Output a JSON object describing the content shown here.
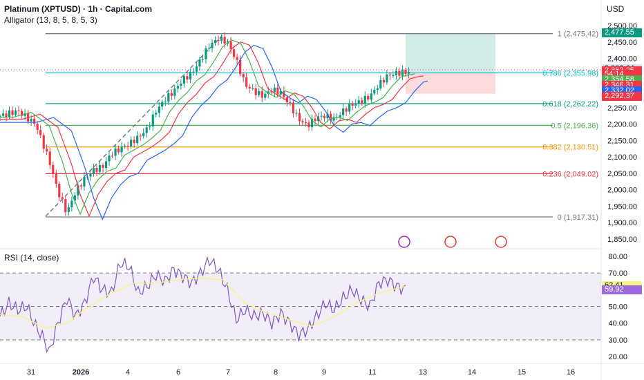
{
  "header": {
    "symbol": "Platinum (XPTUSD) · 1h · Capital.com",
    "indicator": "Alligator (13, 8, 5, 8, 5, 3)",
    "currency": "USD",
    "rsi_label": "RSI (14, close)"
  },
  "price_tags": [
    {
      "text": "2,477.55",
      "color": "#089981",
      "y": 2477.55
    },
    {
      "text": "2,368.64",
      "color": "#e0e3eb",
      "textColor": "#131722",
      "y": 2368.64
    },
    {
      "text": "2,362.25",
      "color": "#f23645",
      "y": 2362.25
    },
    {
      "text": "54:14",
      "color": "#f23645",
      "y": 2351.5
    },
    {
      "text": "2,354.58",
      "color": "#4caf50",
      "y": 2335.5
    },
    {
      "text": "2,346.31",
      "color": "#f23645",
      "y": 2317.5
    },
    {
      "text": "2,332.02",
      "color": "#2962ff",
      "y": 2300.5
    },
    {
      "text": "2,292.37",
      "color": "#f23645",
      "y": 2283.5
    }
  ],
  "rsi_tags": [
    {
      "text": "62.41",
      "color": "#f5f587",
      "textColor": "#131722",
      "y": 62.41
    },
    {
      "text": "59.92",
      "color": "#9c6ade",
      "textColor": "#ffffff",
      "y": 59.92
    }
  ],
  "fib_levels": [
    {
      "label": "1 (2,475.42)",
      "value": 2475.42,
      "color": "#787b86"
    },
    {
      "label": "0.786 (2,355.98)",
      "value": 2355.98,
      "color": "#00bcd4"
    },
    {
      "label": "0.618 (2,262.22)",
      "value": 2262.22,
      "color": "#089981"
    },
    {
      "label": "0.5 (2,196.36)",
      "value": 2196.36,
      "color": "#4caf50"
    },
    {
      "label": "0.382 (2,130.51)",
      "value": 2130.51,
      "color": "#ff9800"
    },
    {
      "label": "0.236 (2,049.02)",
      "value": 2049.02,
      "color": "#f23645"
    },
    {
      "label": "0 (1,917.31)",
      "value": 1917.31,
      "color": "#787b86"
    }
  ],
  "chart_data": {
    "type": "candlestick",
    "price_axis": {
      "ticks": [
        "2,500.00",
        "2,450.00",
        "2,400.00",
        "2,350.00",
        "2,300.00",
        "2,250.00",
        "2,200.00",
        "2,150.00",
        "2,100.00",
        "2,050.00",
        "2,000.00",
        "1,950.00",
        "1,900.00",
        "1,850.00"
      ],
      "ylim": [
        1820,
        2520
      ]
    },
    "rsi_axis": {
      "ticks": [
        "80.00",
        "70.00",
        "50.00",
        "40.00",
        "30.00",
        "20.00"
      ],
      "ylim": [
        17,
        83
      ],
      "band": [
        30,
        70
      ],
      "mid": 50
    },
    "time_axis": {
      "ticks": [
        "31",
        "2026",
        "4",
        "6",
        "7",
        "8",
        "9",
        "11",
        "13",
        "14",
        "15",
        "16"
      ]
    },
    "close_path": [
      [
        0,
        2225
      ],
      [
        4,
        2240
      ],
      [
        8,
        2200
      ],
      [
        11,
        2090
      ],
      [
        13,
        1995
      ],
      [
        15,
        1930
      ],
      [
        17,
        1995
      ],
      [
        19,
        2035
      ],
      [
        21,
        2060
      ],
      [
        23,
        2070
      ],
      [
        25,
        2110
      ],
      [
        27,
        2125
      ],
      [
        29,
        2140
      ],
      [
        31,
        2160
      ],
      [
        33,
        2185
      ],
      [
        35,
        2240
      ],
      [
        37,
        2275
      ],
      [
        39,
        2300
      ],
      [
        41,
        2335
      ],
      [
        43,
        2355
      ],
      [
        45,
        2395
      ],
      [
        47,
        2440
      ],
      [
        49,
        2460
      ],
      [
        51,
        2450
      ],
      [
        53,
        2395
      ],
      [
        55,
        2320
      ],
      [
        57,
        2300
      ],
      [
        59,
        2285
      ],
      [
        61,
        2305
      ],
      [
        63,
        2295
      ],
      [
        65,
        2260
      ],
      [
        67,
        2215
      ],
      [
        69,
        2195
      ],
      [
        71,
        2220
      ],
      [
        73,
        2225
      ],
      [
        75,
        2215
      ],
      [
        77,
        2240
      ],
      [
        79,
        2260
      ],
      [
        81,
        2270
      ],
      [
        83,
        2285
      ],
      [
        85,
        2320
      ],
      [
        87,
        2348
      ],
      [
        89,
        2355
      ],
      [
        91,
        2358
      ],
      [
        92,
        2360
      ]
    ],
    "rsi": [
      [
        0,
        44
      ],
      [
        2,
        52
      ],
      [
        4,
        48
      ],
      [
        6,
        50
      ],
      [
        8,
        38
      ],
      [
        10,
        30
      ],
      [
        11,
        22
      ],
      [
        13,
        40
      ],
      [
        15,
        55
      ],
      [
        17,
        44
      ],
      [
        19,
        52
      ],
      [
        21,
        68
      ],
      [
        23,
        60
      ],
      [
        25,
        58
      ],
      [
        27,
        76
      ],
      [
        29,
        74
      ],
      [
        31,
        58
      ],
      [
        33,
        62
      ],
      [
        35,
        69
      ],
      [
        37,
        65
      ],
      [
        39,
        72
      ],
      [
        41,
        68
      ],
      [
        43,
        64
      ],
      [
        45,
        70
      ],
      [
        47,
        78
      ],
      [
        49,
        72
      ],
      [
        51,
        60
      ],
      [
        53,
        42
      ],
      [
        55,
        48
      ],
      [
        57,
        44
      ],
      [
        59,
        46
      ],
      [
        61,
        40
      ],
      [
        63,
        46
      ],
      [
        65,
        40
      ],
      [
        67,
        33
      ],
      [
        69,
        36
      ],
      [
        71,
        44
      ],
      [
        73,
        52
      ],
      [
        75,
        48
      ],
      [
        77,
        55
      ],
      [
        79,
        60
      ],
      [
        81,
        54
      ],
      [
        83,
        50
      ],
      [
        85,
        64
      ],
      [
        87,
        66
      ],
      [
        89,
        62
      ],
      [
        91,
        60
      ]
    ],
    "rsi_ma": [
      [
        0,
        45
      ],
      [
        5,
        44
      ],
      [
        10,
        37
      ],
      [
        15,
        40
      ],
      [
        20,
        50
      ],
      [
        25,
        58
      ],
      [
        30,
        64
      ],
      [
        35,
        64
      ],
      [
        40,
        66
      ],
      [
        45,
        67
      ],
      [
        50,
        66
      ],
      [
        55,
        52
      ],
      [
        60,
        46
      ],
      [
        65,
        42
      ],
      [
        70,
        38
      ],
      [
        75,
        44
      ],
      [
        80,
        52
      ],
      [
        85,
        58
      ],
      [
        91,
        62
      ]
    ],
    "position_box": {
      "entry": 2358,
      "target": 2477.55,
      "stop": 2292.37
    },
    "annotations": [
      "1 (2,475.42)",
      "0.786 (2,355.98)",
      "0.618 (2,262.22)",
      "0.5 (2,196.36)",
      "0.382 (2,130.51)",
      "0.236 (2,049.02)",
      "0 (1,917.31)"
    ]
  },
  "icons": [
    "lightning-event-icon",
    "us-flag-event-icon",
    "us-flag-event-icon-2"
  ]
}
